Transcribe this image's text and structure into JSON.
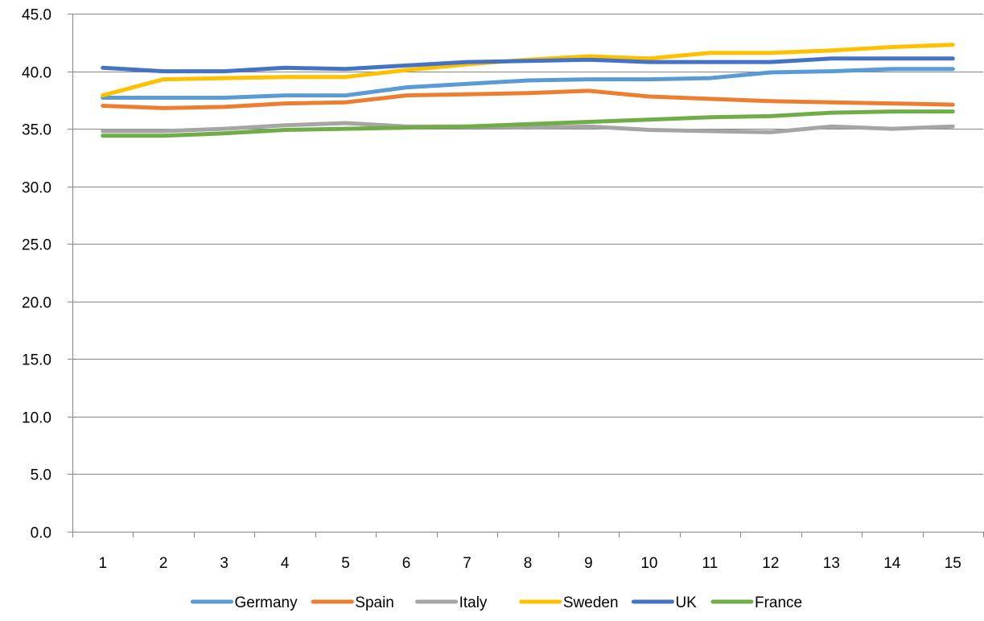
{
  "chart_data": {
    "type": "line",
    "title": "",
    "xlabel": "",
    "ylabel": "",
    "categories": [
      1,
      2,
      3,
      4,
      5,
      6,
      7,
      8,
      9,
      10,
      11,
      12,
      13,
      14,
      15
    ],
    "ylim": [
      0,
      45
    ],
    "y_ticks": [
      "0.0",
      "5.0",
      "10.0",
      "15.0",
      "20.0",
      "25.0",
      "30.0",
      "35.0",
      "40.0",
      "45.0"
    ],
    "grid": "horizontal",
    "legend_position": "bottom",
    "series": [
      {
        "name": "Germany",
        "color": "#5B9BD5",
        "values": [
          37.7,
          37.7,
          37.7,
          37.9,
          37.9,
          38.6,
          38.9,
          39.2,
          39.3,
          39.3,
          39.4,
          39.9,
          40.0,
          40.2,
          40.2
        ]
      },
      {
        "name": "Spain",
        "color": "#ED7D31",
        "values": [
          37.0,
          36.8,
          36.9,
          37.2,
          37.3,
          37.9,
          38.0,
          38.1,
          38.3,
          37.8,
          37.6,
          37.4,
          37.3,
          37.2,
          37.1
        ]
      },
      {
        "name": "Italy",
        "color": "#A5A5A5",
        "values": [
          34.8,
          34.8,
          35.0,
          35.3,
          35.5,
          35.2,
          35.2,
          35.1,
          35.2,
          34.9,
          34.8,
          34.7,
          35.2,
          35.0,
          35.2
        ]
      },
      {
        "name": "Sweden",
        "color": "#FFC000",
        "values": [
          37.9,
          39.3,
          39.4,
          39.5,
          39.5,
          40.1,
          40.6,
          41.0,
          41.3,
          41.1,
          41.6,
          41.6,
          41.8,
          42.1,
          42.3
        ]
      },
      {
        "name": "UK",
        "color": "#4472C4",
        "values": [
          40.3,
          40.0,
          40.0,
          40.3,
          40.2,
          40.5,
          40.8,
          40.9,
          41.0,
          40.8,
          40.8,
          40.8,
          41.1,
          41.1,
          41.1
        ]
      },
      {
        "name": "France",
        "color": "#70AD47",
        "values": [
          34.4,
          34.4,
          34.6,
          34.9,
          35.0,
          35.1,
          35.2,
          35.4,
          35.6,
          35.8,
          36.0,
          36.1,
          36.4,
          36.5,
          36.5
        ]
      }
    ]
  }
}
